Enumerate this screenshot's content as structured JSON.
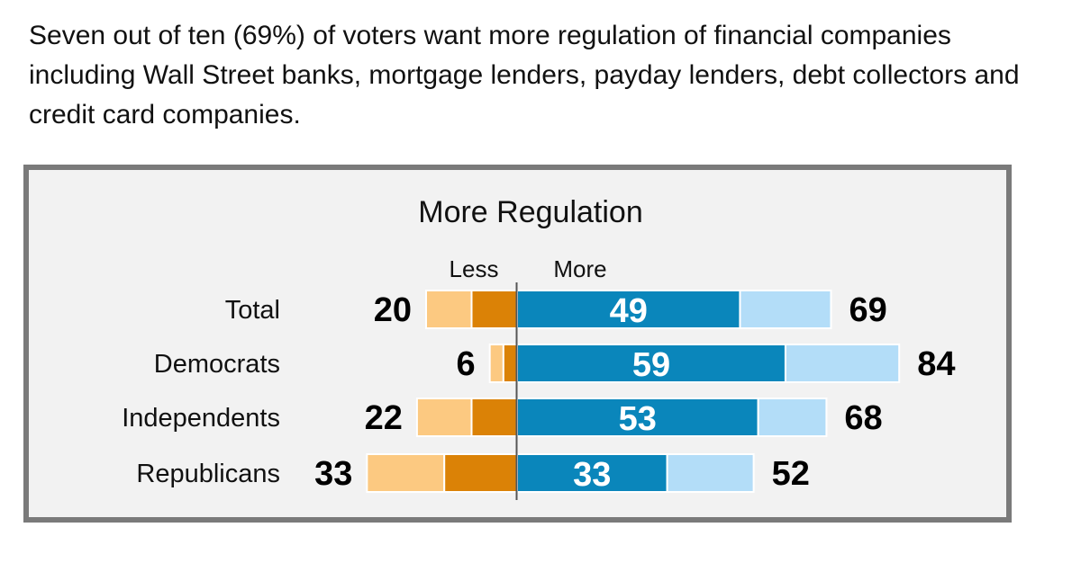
{
  "headline": "Seven out of ten (69%) of voters want more regulation of financial companies including Wall Street banks, mortgage lenders, payday lenders, debt collectors and credit card companies.",
  "chart_data": {
    "type": "bar",
    "orientation": "horizontal-diverging",
    "title": "More Regulation",
    "column_labels": {
      "left": "Less",
      "right": "More"
    },
    "categories": [
      "Total",
      "Democrats",
      "Independents",
      "Republicans"
    ],
    "series": [
      {
        "name": "Less (strong)",
        "side": "left",
        "values": [
          10,
          3,
          10,
          16
        ]
      },
      {
        "name": "Less (total)",
        "side": "left",
        "values": [
          20,
          6,
          22,
          33
        ]
      },
      {
        "name": "More (strong)",
        "side": "right",
        "values": [
          49,
          59,
          53,
          33
        ]
      },
      {
        "name": "More (total)",
        "side": "right",
        "values": [
          69,
          84,
          68,
          52
        ]
      }
    ],
    "less_totals": [
      20,
      6,
      22,
      33
    ],
    "more_strong": [
      49,
      59,
      53,
      33
    ],
    "more_totals": [
      69,
      84,
      68,
      52
    ],
    "colors": {
      "less_light": "#fcc981",
      "less_dark": "#db8206",
      "more_dark": "#0a86bb",
      "more_light": "#b3ddf8",
      "axis": "#555555"
    }
  }
}
